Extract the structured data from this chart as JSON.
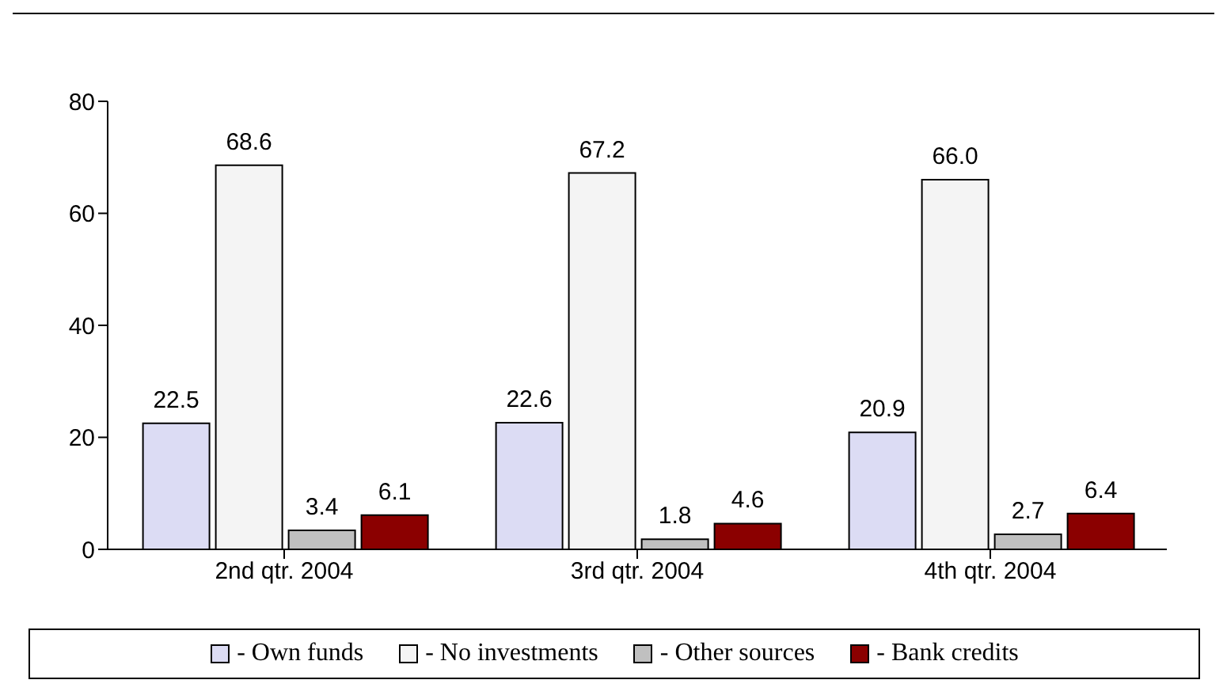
{
  "chart_data": {
    "type": "bar",
    "categories": [
      "2nd qtr. 2004",
      "3rd qtr. 2004",
      "4th qtr. 2004"
    ],
    "series": [
      {
        "name": "- Own funds",
        "color": "#dcdcf4",
        "values": [
          22.5,
          22.6,
          20.9
        ]
      },
      {
        "name": "- No investments",
        "color": "#f4f4f4",
        "values": [
          68.6,
          67.2,
          66.0
        ],
        "value_labels": [
          "68.6",
          "67.2",
          "66.0"
        ]
      },
      {
        "name": "- Other sources",
        "color": "#c0c0c0",
        "values": [
          3.4,
          1.8,
          2.7
        ]
      },
      {
        "name": "- Bank credits",
        "color": "#8b0000",
        "values": [
          6.1,
          4.6,
          6.4
        ]
      }
    ],
    "ylim": [
      0,
      80
    ],
    "yticks": [
      0,
      20,
      40,
      60,
      80
    ],
    "legend": "bottom",
    "data_labels": true
  }
}
